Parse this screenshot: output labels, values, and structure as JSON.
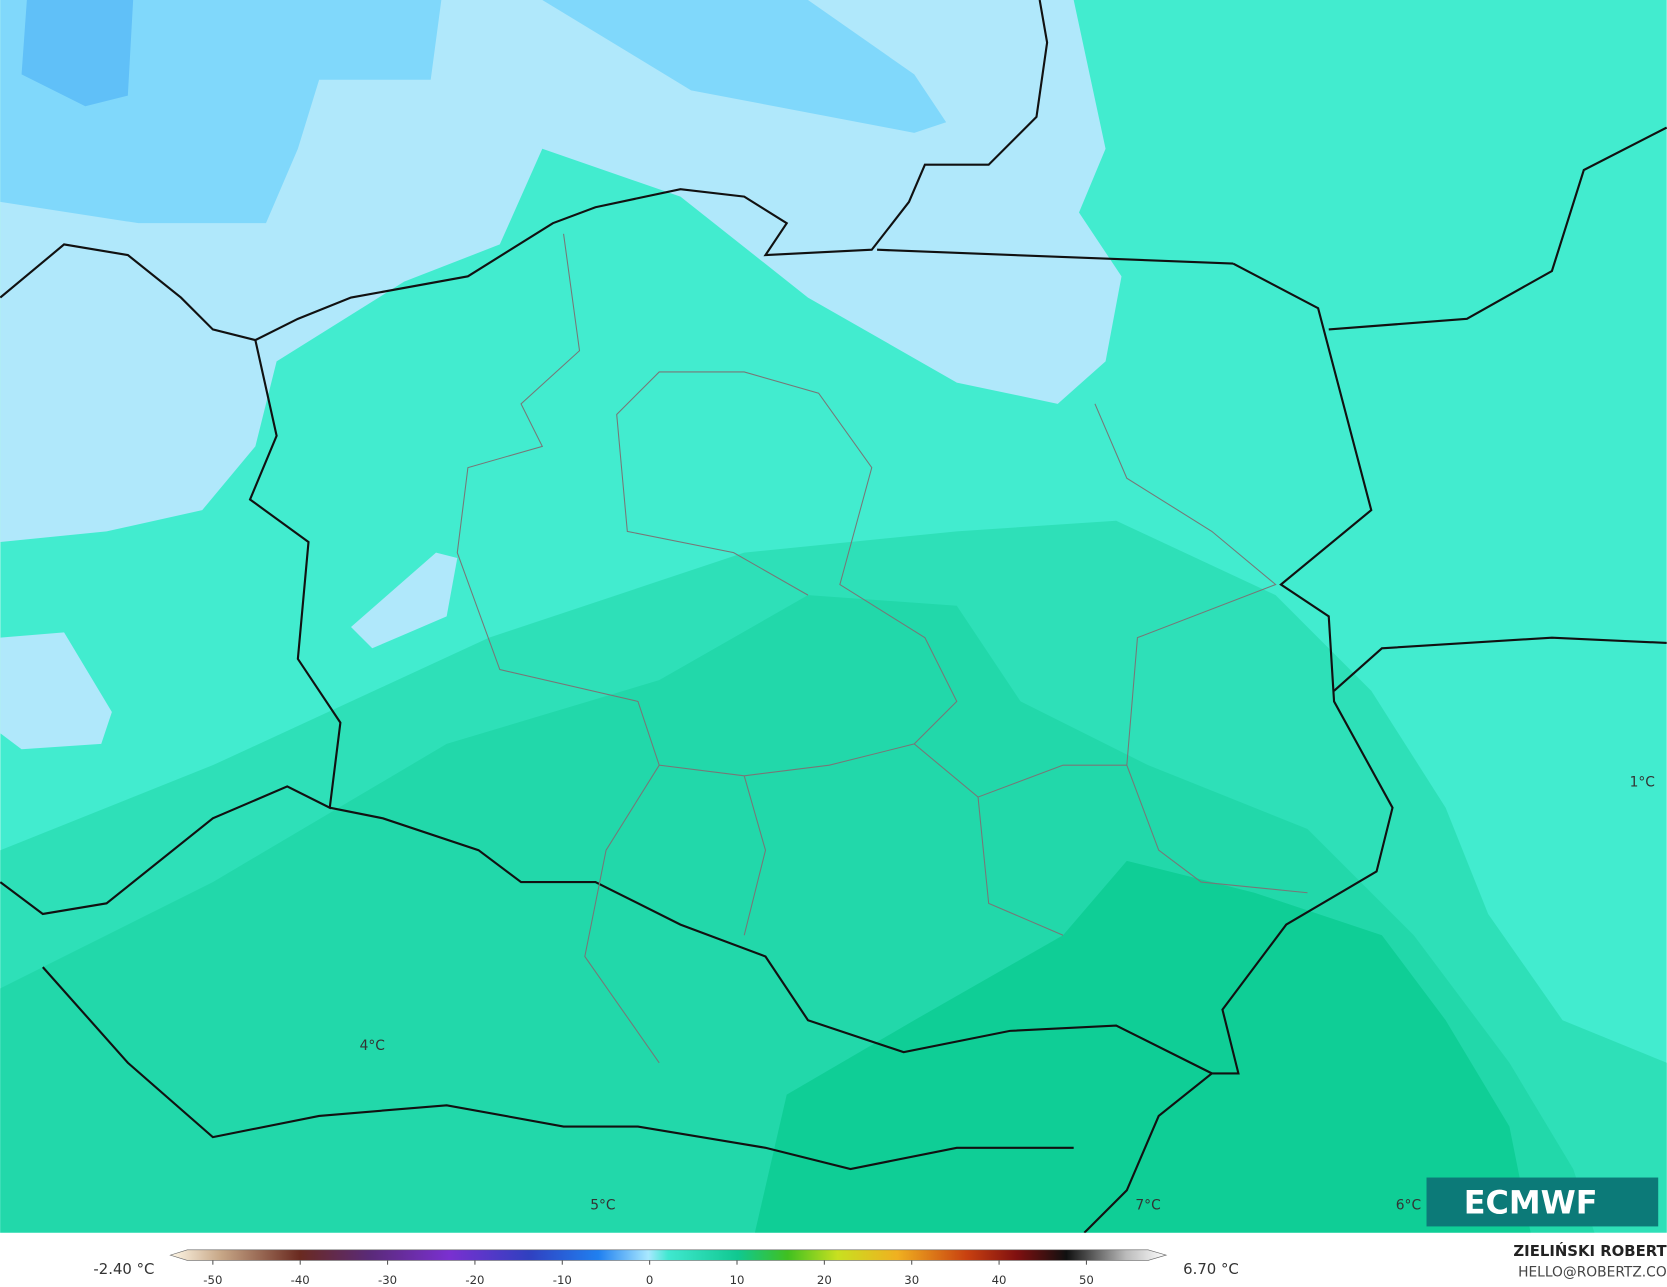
{
  "map": {
    "contour_labels": [
      "1°C",
      "4°C",
      "5°C",
      "7°C",
      "6°C"
    ]
  },
  "logo": "ECMWF",
  "colorbar": {
    "min_label": "-2.40 °C",
    "max_label": "6.70 °C",
    "ticks": [
      -50,
      -40,
      -30,
      -20,
      -10,
      0,
      10,
      20,
      30,
      40,
      50
    ]
  },
  "author": {
    "name": "ZIELIŃSKI ROBERT",
    "contact": "HELLO@ROBERTZ.CO"
  }
}
